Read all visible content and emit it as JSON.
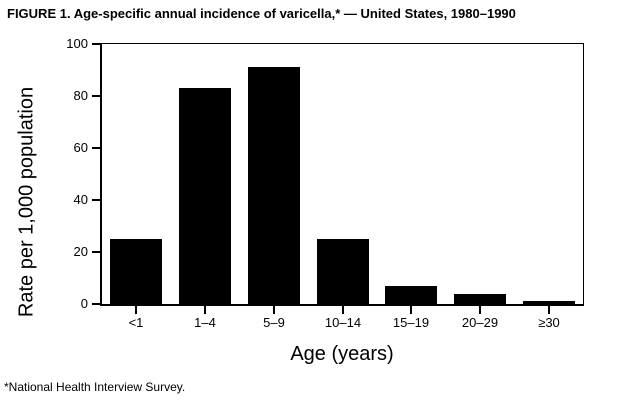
{
  "figure": {
    "title": "FIGURE 1. Age-specific annual incidence of varicella,* — United States, 1980–1990",
    "footnote": "*National Health Interview Survey."
  },
  "chart_data": {
    "type": "bar",
    "categories": [
      "<1",
      "1–4",
      "5–9",
      "10–14",
      "15–19",
      "20–29",
      "≥30"
    ],
    "values": [
      25,
      83,
      91,
      25,
      7,
      4,
      1
    ],
    "title": "FIGURE 1. Age-specific annual incidence of varicella,* — United States, 1980–1990",
    "xlabel": "Age (years)",
    "ylabel": "Rate per 1,000 population",
    "ylim": [
      0,
      100
    ],
    "yticks": [
      0,
      20,
      40,
      60,
      80,
      100
    ],
    "bar_color": "#000000",
    "background_color": "#ffffff",
    "grid": false,
    "legend": "none"
  }
}
